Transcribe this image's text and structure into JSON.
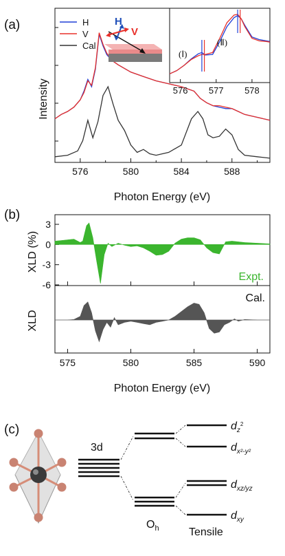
{
  "panels": {
    "a": {
      "label": "(a)",
      "ylabel": "Intensity",
      "xlabel": "Photon Energy (eV)",
      "xticks": [
        "576",
        "580",
        "584",
        "588"
      ],
      "legend": [
        {
          "label": "H",
          "color": "#1f3fd6"
        },
        {
          "label": "V",
          "color": "#e8302a"
        },
        {
          "label": "Cal",
          "color": "#333333"
        }
      ],
      "arrow_labels": {
        "h": "H",
        "v": "V"
      },
      "inset": {
        "xticks": [
          "576",
          "577",
          "578"
        ],
        "peak1": "(Ⅰ)",
        "peak2": "(Ⅱ)"
      }
    },
    "b": {
      "label": "(b)",
      "top_ylabel": "XLD (%)",
      "yticks": [
        "3",
        "0",
        "-3",
        "-6"
      ],
      "expt_label": "Expt.",
      "cal_label": "Cal.",
      "bottom_ylabel": "XLD",
      "xlabel": "Photon Energy (eV)",
      "xticks": [
        "575",
        "580",
        "585",
        "590"
      ],
      "expt_color": "#3bb52e",
      "cal_color": "#555555"
    },
    "c": {
      "label": "(c)",
      "levels_3d": "3d",
      "oh_label": "O",
      "oh_sub": "h",
      "tensile_label": "Tensile",
      "orbitals": [
        {
          "main": "d",
          "sub": "z",
          "sup": "2"
        },
        {
          "main": "d",
          "sub": "x²-y²"
        },
        {
          "main": "d",
          "sub": "xz/yz"
        },
        {
          "main": "d",
          "sub": "xy"
        }
      ]
    }
  },
  "chart_data": [
    {
      "type": "line",
      "panel": "a",
      "xlabel": "Photon Energy (eV)",
      "ylabel": "Intensity",
      "xlim": [
        574,
        591
      ],
      "ylim": [
        0,
        1
      ],
      "series": [
        {
          "name": "H",
          "x": [
            574,
            574.5,
            575,
            575.5,
            576,
            576.3,
            576.6,
            576.9,
            577.2,
            577.5,
            577.8,
            578.1,
            578.5,
            579,
            580,
            581,
            582,
            583,
            584,
            585,
            585.5,
            586,
            586.5,
            587,
            587.5,
            588,
            588.5,
            589,
            590,
            591
          ],
          "y": [
            0.28,
            0.31,
            0.33,
            0.36,
            0.41,
            0.47,
            0.55,
            0.5,
            0.62,
            0.86,
            0.78,
            0.72,
            0.68,
            0.65,
            0.6,
            0.57,
            0.54,
            0.52,
            0.5,
            0.47,
            0.42,
            0.39,
            0.37,
            0.36,
            0.35,
            0.35,
            0.33,
            0.31,
            0.29,
            0.27
          ]
        },
        {
          "name": "V",
          "x": [
            574,
            574.5,
            575,
            575.5,
            576,
            576.3,
            576.6,
            576.9,
            577.2,
            577.5,
            577.8,
            578.1,
            578.5,
            579,
            580,
            581,
            582,
            583,
            584,
            585,
            585.5,
            586,
            586.5,
            587,
            587.5,
            588,
            588.5,
            589,
            590,
            591
          ],
          "y": [
            0.28,
            0.31,
            0.33,
            0.36,
            0.41,
            0.46,
            0.54,
            0.51,
            0.63,
            0.87,
            0.79,
            0.73,
            0.68,
            0.65,
            0.6,
            0.57,
            0.54,
            0.52,
            0.5,
            0.47,
            0.42,
            0.39,
            0.37,
            0.37,
            0.36,
            0.35,
            0.33,
            0.31,
            0.29,
            0.27
          ]
        },
        {
          "name": "Cal",
          "x": [
            574,
            575,
            575.8,
            576.2,
            576.6,
            577,
            577.4,
            577.8,
            578.2,
            578.6,
            579,
            579.5,
            580,
            580.5,
            581,
            581.5,
            582,
            583,
            584,
            584.8,
            585.3,
            585.7,
            586.1,
            586.5,
            587,
            587.5,
            588,
            588.5,
            589,
            590,
            591
          ],
          "y": [
            0.02,
            0.03,
            0.06,
            0.13,
            0.27,
            0.15,
            0.26,
            0.44,
            0.5,
            0.38,
            0.27,
            0.2,
            0.1,
            0.05,
            0.07,
            0.04,
            0.03,
            0.05,
            0.1,
            0.28,
            0.33,
            0.28,
            0.17,
            0.15,
            0.16,
            0.21,
            0.17,
            0.07,
            0.03,
            0.02,
            0.01
          ]
        }
      ]
    },
    {
      "type": "area",
      "panel": "b-top",
      "ylabel": "XLD (%)",
      "ylim": [
        -6,
        4
      ],
      "xlim": [
        574,
        591
      ],
      "series": [
        {
          "name": "Expt.",
          "x": [
            574,
            574.5,
            575,
            575.5,
            576,
            576.2,
            576.5,
            576.7,
            577,
            577.3,
            577.6,
            577.9,
            578.2,
            578.5,
            579,
            579.5,
            580,
            580.5,
            581,
            581.5,
            582,
            582.5,
            583,
            583.5,
            584,
            584.5,
            585,
            585.5,
            586,
            586.5,
            587,
            587.5,
            588,
            588.5,
            589,
            590,
            591
          ],
          "y": [
            0.5,
            0.6,
            0.7,
            0.8,
            0.3,
            0.5,
            2.8,
            3.2,
            1.0,
            -2.5,
            -5.8,
            -1.5,
            0.2,
            -0.3,
            0.2,
            -0.1,
            -0.3,
            -0.2,
            -0.5,
            -1.0,
            -1.6,
            -1.5,
            -1.0,
            0.2,
            0.8,
            1.0,
            1.0,
            0.7,
            -0.5,
            -1.2,
            -1.4,
            0.4,
            0.5,
            0.4,
            0.3,
            0.2,
            0.1
          ]
        }
      ]
    },
    {
      "type": "area",
      "panel": "b-bottom",
      "ylabel": "XLD",
      "xlabel": "Photon Energy (eV)",
      "xlim": [
        574,
        591
      ],
      "ylim": [
        -1,
        1
      ],
      "series": [
        {
          "name": "Cal.",
          "x": [
            574,
            575,
            575.5,
            576,
            576.3,
            576.6,
            576.9,
            577.2,
            577.5,
            577.8,
            578.1,
            578.4,
            578.7,
            579,
            579.5,
            580,
            580.5,
            581,
            581.5,
            582,
            582.5,
            583,
            583.5,
            584,
            584.5,
            585,
            585.4,
            585.8,
            586.2,
            586.6,
            587,
            587.4,
            587.8,
            588.2,
            588.5,
            589,
            590,
            591
          ],
          "y": [
            0,
            0,
            0.02,
            0.15,
            0.6,
            0.75,
            0.3,
            -0.45,
            -0.9,
            -0.4,
            -0.1,
            -0.3,
            0.1,
            -0.2,
            -0.1,
            -0.05,
            -0.1,
            -0.15,
            -0.2,
            -0.1,
            -0.05,
            0.0,
            0.15,
            0.35,
            0.55,
            0.7,
            0.65,
            0.3,
            -0.35,
            -0.55,
            -0.5,
            -0.2,
            -0.1,
            0.05,
            -0.05,
            0.02,
            0,
            0
          ]
        }
      ]
    }
  ]
}
